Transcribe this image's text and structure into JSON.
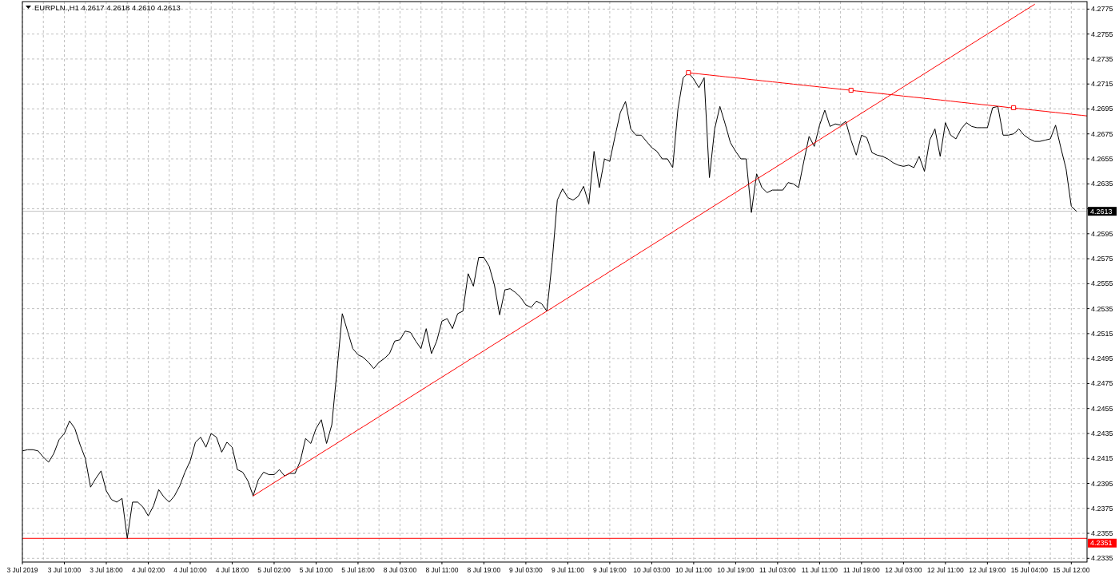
{
  "chart_data": {
    "type": "line",
    "title": "EURPLN.,H1 4.2617 4.2618 4.2610 4.2613",
    "categories": [
      "3 Jul 2019",
      null,
      null,
      null,
      null,
      null,
      null,
      null,
      "3 Jul 10:00",
      null,
      null,
      null,
      null,
      null,
      null,
      null,
      "3 Jul 18:00",
      null,
      null,
      null,
      null,
      null,
      null,
      null,
      "4 Jul 02:00",
      null,
      null,
      null,
      null,
      null,
      null,
      null,
      "4 Jul 10:00",
      null,
      null,
      null,
      null,
      null,
      null,
      null,
      "4 Jul 18:00",
      null,
      null,
      null,
      null,
      null,
      null,
      null,
      "5 Jul 02:00",
      null,
      null,
      null,
      null,
      null,
      null,
      null,
      "5 Jul 10:00",
      null,
      null,
      null,
      null,
      null,
      null,
      null,
      "5 Jul 18:00",
      null,
      null,
      null,
      null,
      null,
      null,
      null,
      "8 Jul 03:00",
      null,
      null,
      null,
      null,
      null,
      null,
      null,
      "8 Jul 11:00",
      null,
      null,
      null,
      null,
      null,
      null,
      null,
      "8 Jul 19:00",
      null,
      null,
      null,
      null,
      null,
      null,
      null,
      "9 Jul 03:00",
      null,
      null,
      null,
      null,
      null,
      null,
      null,
      "9 Jul 11:00",
      null,
      null,
      null,
      null,
      null,
      null,
      null,
      "9 Jul 19:00",
      null,
      null,
      null,
      null,
      null,
      null,
      null,
      "10 Jul 03:00",
      null,
      null,
      null,
      null,
      null,
      null,
      null,
      "10 Jul 11:00",
      null,
      null,
      null,
      null,
      null,
      null,
      null,
      "10 Jul 19:00",
      null,
      null,
      null,
      null,
      null,
      null,
      null,
      "11 Jul 03:00",
      null,
      null,
      null,
      null,
      null,
      null,
      null,
      "11 Jul 11:00",
      null,
      null,
      null,
      null,
      null,
      null,
      null,
      "11 Jul 19:00",
      null,
      null,
      null,
      null,
      null,
      null,
      null,
      "12 Jul 03:00",
      null,
      null,
      null,
      null,
      null,
      null,
      null,
      "12 Jul 11:00",
      null,
      null,
      null,
      null,
      null,
      null,
      null,
      "12 Jul 19:00",
      null,
      null,
      null,
      null,
      null,
      null,
      null,
      "15 Jul 04:00",
      null,
      null,
      null,
      null,
      null,
      null,
      null,
      "15 Jul 12:00",
      null,
      null,
      null
    ],
    "ylim": [
      4.2332,
      4.2781
    ],
    "yticks": [
      4.2335,
      4.2355,
      4.2375,
      4.2395,
      4.2415,
      4.2435,
      4.2455,
      4.2475,
      4.2495,
      4.2515,
      4.2535,
      4.2555,
      4.2575,
      4.2595,
      {
        "value": 4.2615,
        "label": null
      },
      4.2635,
      4.2655,
      4.2675,
      4.2695,
      4.2715,
      4.2735,
      4.2755,
      4.2775
    ],
    "grid": true,
    "ref_lines": [
      {
        "axis": "y",
        "value": 4.2613,
        "label": "4.2613",
        "color": "#c0c0c0"
      },
      {
        "axis": "y",
        "value": 4.2351,
        "label": "4.2351",
        "color": "#ff0000"
      }
    ],
    "series": [
      {
        "color": "#000000",
        "values": [
          4.2421,
          4.2422,
          4.2422,
          4.2421,
          4.2416,
          4.2412,
          4.2419,
          4.243,
          4.2435,
          4.2445,
          4.2439,
          4.2426,
          4.2415,
          4.2392,
          4.2399,
          4.2405,
          4.2389,
          4.2382,
          4.238,
          4.2383,
          4.2351,
          4.238,
          4.238,
          4.2376,
          4.2369,
          4.2377,
          4.239,
          4.2384,
          4.238,
          4.2385,
          4.2393,
          4.2404,
          4.2413,
          4.2428,
          4.2432,
          4.2424,
          4.2435,
          4.2432,
          4.242,
          4.2428,
          4.2424,
          4.2406,
          4.2404,
          4.2397,
          4.2385,
          4.2398,
          4.2404,
          4.2402,
          4.2402,
          4.2406,
          4.2401,
          4.2403,
          4.2403,
          4.2413,
          4.2431,
          4.2427,
          4.2439,
          4.2446,
          4.2427,
          4.2442,
          4.2486,
          4.2531,
          4.2517,
          4.2503,
          4.2498,
          4.2496,
          4.2492,
          4.2487,
          4.2492,
          4.2495,
          4.2499,
          4.2509,
          4.251,
          4.2517,
          4.2516,
          4.2509,
          4.2503,
          4.2519,
          4.2499,
          4.2509,
          4.2525,
          4.2527,
          4.2519,
          4.2531,
          4.2533,
          4.2563,
          4.2553,
          4.2576,
          4.2576,
          4.2569,
          4.2554,
          4.253,
          4.255,
          4.2551,
          4.2548,
          4.2544,
          4.2538,
          4.2536,
          4.2541,
          4.2539,
          4.2533,
          4.2572,
          4.2622,
          4.2631,
          4.2624,
          4.2622,
          4.2625,
          4.2633,
          4.2619,
          4.2661,
          4.2632,
          4.2655,
          4.2653,
          4.2673,
          4.2692,
          4.2701,
          4.2679,
          4.2674,
          4.2674,
          4.2669,
          4.2664,
          4.2661,
          4.2655,
          4.2655,
          4.2648,
          4.2695,
          4.272,
          4.2724,
          4.2719,
          4.2712,
          4.272,
          4.264,
          4.2679,
          4.2697,
          4.2683,
          4.2668,
          4.2661,
          4.2655,
          4.2655,
          4.2612,
          4.2643,
          4.2632,
          4.2628,
          4.263,
          4.263,
          4.263,
          4.2636,
          4.2635,
          4.2632,
          4.2653,
          4.2673,
          4.2665,
          4.2682,
          4.2694,
          4.2681,
          4.2683,
          4.2682,
          4.2685,
          4.267,
          4.2658,
          4.2674,
          4.2672,
          4.266,
          4.2658,
          4.2657,
          4.2655,
          4.2652,
          4.265,
          4.2649,
          4.265,
          4.2648,
          4.2657,
          4.2645,
          4.267,
          4.2679,
          4.2657,
          4.2684,
          4.2674,
          4.2671,
          4.2679,
          4.2684,
          4.2681,
          4.268,
          4.268,
          4.268,
          4.2696,
          4.2697,
          4.2674,
          4.2674,
          4.2675,
          4.2679,
          4.2674,
          4.2671,
          4.2669,
          4.2669,
          4.267,
          4.2671,
          4.2682,
          4.2664,
          4.2647,
          4.2617,
          4.2613,
          null,
          null
        ]
      },
      {
        "type": "line",
        "color": "#ff0000",
        "values": [
          null,
          null,
          null,
          null,
          null,
          null,
          null,
          null,
          null,
          null,
          null,
          null,
          null,
          null,
          null,
          null,
          null,
          null,
          null,
          null,
          null,
          null,
          null,
          null,
          null,
          null,
          null,
          null,
          null,
          null,
          null,
          null,
          null,
          null,
          null,
          null,
          null,
          null,
          null,
          null,
          null,
          null,
          null,
          null,
          4.2385,
          4.23876,
          4.23903,
          4.23929,
          4.23956,
          4.23982,
          4.24009,
          4.24035,
          4.24061,
          4.24088,
          4.24114,
          4.24141,
          4.24167,
          4.24194,
          4.2422,
          4.24246,
          4.24273,
          4.24299,
          4.24326,
          4.24352,
          4.24379,
          4.24405,
          4.24431,
          4.24458,
          4.24484,
          4.24511,
          4.24537,
          4.24564,
          4.2459,
          4.24616,
          4.24643,
          4.24669,
          4.24696,
          4.24722,
          4.24749,
          4.24775,
          4.24801,
          4.24828,
          4.24854,
          4.24881,
          4.24907,
          4.24934,
          4.2496,
          4.24986,
          4.25013,
          4.25039,
          4.25066,
          4.25092,
          4.25119,
          4.25145,
          4.25171,
          4.25198,
          4.25224,
          4.25251,
          4.25277,
          4.25304,
          4.2533,
          4.25356,
          4.25383,
          4.25409,
          4.25436,
          4.25462,
          4.25489,
          4.25515,
          4.25541,
          4.25568,
          4.25594,
          4.25621,
          4.25647,
          4.25674,
          4.257,
          4.25726,
          4.25753,
          4.25779,
          4.25806,
          4.25832,
          4.25859,
          4.25885,
          4.25911,
          4.25938,
          4.25964,
          4.25991,
          4.26017,
          4.26044,
          4.2607,
          4.26096,
          4.26123,
          4.26149,
          4.26176,
          4.26202,
          4.26229,
          4.26255,
          4.26281,
          4.26308,
          4.26334,
          4.26361,
          4.26387,
          4.26414,
          4.2644,
          4.26466,
          4.26493,
          4.26519,
          4.26546,
          4.26572,
          4.26599,
          4.26625,
          4.26651,
          4.26678,
          4.26704,
          4.26731,
          4.26757,
          4.26784,
          4.2681,
          4.26836,
          4.26863,
          4.26889,
          4.26916,
          4.26942,
          4.26969,
          4.26995,
          4.27021,
          4.27048,
          4.27074,
          4.27101,
          4.27127,
          4.27154,
          4.2718,
          4.27206,
          4.27233,
          4.27259,
          4.27286,
          4.27312,
          4.27339,
          4.27365,
          4.27391,
          4.27418,
          4.27444,
          4.27471,
          4.27497,
          4.27524,
          4.2755,
          4.27576,
          4.27603,
          4.27629,
          4.27656,
          4.27682,
          4.27709,
          4.27735,
          4.27761,
          4.27788,
          null,
          null,
          null,
          null,
          null,
          null,
          null,
          null,
          null,
          null
        ]
      },
      {
        "type": "line",
        "color": "#ff0000",
        "values": [
          null,
          null,
          null,
          null,
          null,
          null,
          null,
          null,
          null,
          null,
          null,
          null,
          null,
          null,
          null,
          null,
          null,
          null,
          null,
          null,
          null,
          null,
          null,
          null,
          null,
          null,
          null,
          null,
          null,
          null,
          null,
          null,
          null,
          null,
          null,
          null,
          null,
          null,
          null,
          null,
          null,
          null,
          null,
          null,
          null,
          null,
          null,
          null,
          null,
          null,
          null,
          null,
          null,
          null,
          null,
          null,
          null,
          null,
          null,
          null,
          null,
          null,
          null,
          null,
          null,
          null,
          null,
          null,
          null,
          null,
          null,
          null,
          null,
          null,
          null,
          null,
          null,
          null,
          null,
          null,
          null,
          null,
          null,
          null,
          null,
          null,
          null,
          null,
          null,
          null,
          null,
          null,
          null,
          null,
          null,
          null,
          null,
          null,
          null,
          null,
          null,
          null,
          null,
          null,
          null,
          null,
          null,
          null,
          null,
          null,
          null,
          null,
          null,
          null,
          null,
          null,
          null,
          null,
          null,
          null,
          null,
          null,
          null,
          null,
          null,
          null,
          null,
          4.2724,
          4.27235,
          4.27231,
          4.27226,
          4.27222,
          4.27217,
          4.27213,
          4.27208,
          4.27204,
          4.27199,
          4.27195,
          4.2719,
          4.27185,
          4.27181,
          4.27176,
          4.27172,
          4.27167,
          4.27163,
          4.27158,
          4.27154,
          4.27149,
          4.27144,
          4.2714,
          4.27135,
          4.27131,
          4.27126,
          4.27122,
          4.27117,
          4.27113,
          4.27108,
          4.27104,
          4.27099,
          4.27094,
          4.2709,
          4.27085,
          4.27081,
          4.27076,
          4.27072,
          4.27067,
          4.27063,
          4.27058,
          4.27053,
          4.27049,
          4.27044,
          4.2704,
          4.27035,
          4.27031,
          4.27026,
          4.27022,
          4.27017,
          4.27013,
          4.27008,
          4.27003,
          4.26999,
          4.26994,
          4.2699,
          4.26985,
          4.26981,
          4.26976,
          4.26972,
          4.26967,
          4.26962,
          4.26958,
          4.26953,
          4.26949,
          4.26944,
          4.2694,
          4.26935,
          4.26931,
          4.26926,
          4.26922,
          4.26917,
          4.26912,
          4.26908,
          4.26903,
          4.26899,
          4.26894
        ]
      },
      {
        "type": "scatter",
        "color": "#ff0000",
        "marker": "square",
        "values": [
          null,
          null,
          null,
          null,
          null,
          null,
          null,
          null,
          null,
          null,
          null,
          null,
          null,
          null,
          null,
          null,
          null,
          null,
          null,
          null,
          null,
          null,
          null,
          null,
          null,
          null,
          null,
          null,
          null,
          null,
          null,
          null,
          null,
          null,
          null,
          null,
          null,
          null,
          null,
          null,
          null,
          null,
          null,
          null,
          null,
          null,
          null,
          null,
          null,
          null,
          null,
          null,
          null,
          null,
          null,
          null,
          null,
          null,
          null,
          null,
          null,
          null,
          null,
          null,
          null,
          null,
          null,
          null,
          null,
          null,
          null,
          null,
          null,
          null,
          null,
          null,
          null,
          null,
          null,
          null,
          null,
          null,
          null,
          null,
          null,
          null,
          null,
          null,
          null,
          null,
          null,
          null,
          null,
          null,
          null,
          null,
          null,
          null,
          null,
          null,
          null,
          null,
          null,
          null,
          null,
          null,
          null,
          null,
          null,
          null,
          null,
          null,
          null,
          null,
          null,
          null,
          null,
          null,
          null,
          null,
          null,
          null,
          null,
          null,
          null,
          null,
          null,
          4.2724,
          null,
          null,
          null,
          null,
          null,
          null,
          null,
          null,
          null,
          null,
          null,
          null,
          null,
          null,
          null,
          null,
          null,
          null,
          null,
          null,
          null,
          null,
          null,
          null,
          null,
          null,
          null,
          null,
          null,
          null,
          4.271,
          null,
          null,
          null,
          null,
          null,
          null,
          null,
          null,
          null,
          null,
          null,
          null,
          null,
          null,
          null,
          null,
          null,
          null,
          null,
          null,
          null,
          null,
          null,
          null,
          null,
          null,
          null,
          null,
          null,
          null,
          4.2696,
          null,
          null,
          null,
          null,
          null,
          null,
          null,
          null,
          null,
          null,
          null,
          null,
          null,
          null
        ]
      }
    ]
  }
}
